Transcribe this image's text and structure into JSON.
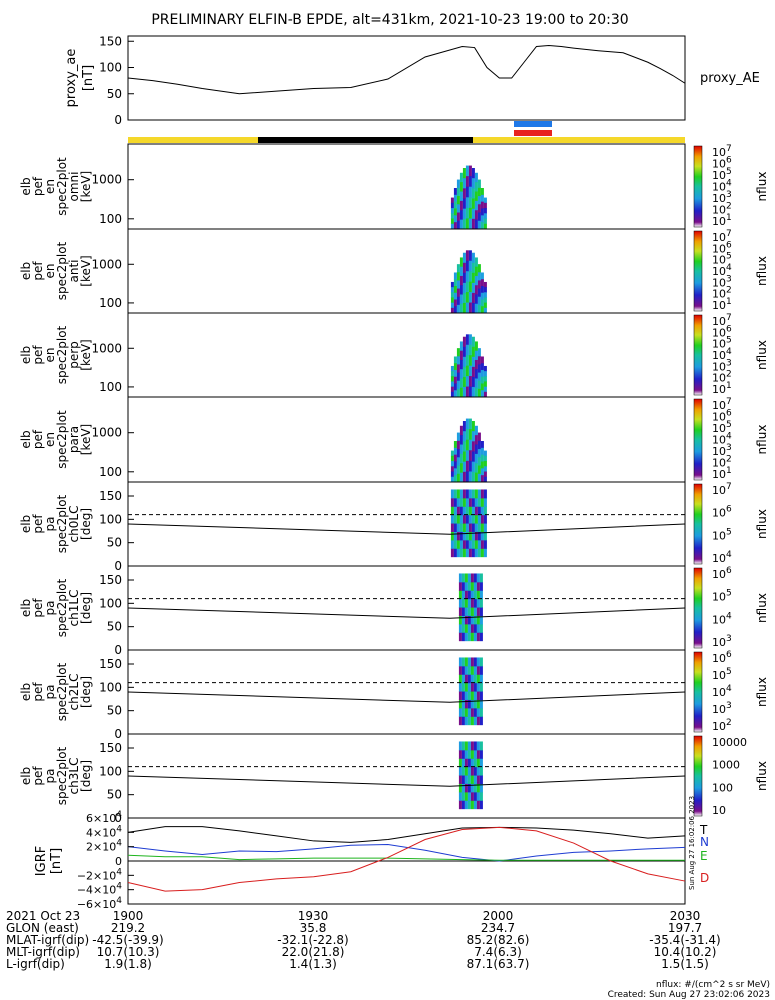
{
  "title": "PRELIMINARY ELFIN-B EPDE, alt=431km, 2021-10-23 19:00 to 20:30",
  "colors": {
    "yellow": "#f5d82a",
    "black": "#000000",
    "blue": "#1e78e8",
    "red": "#e8231e",
    "trace_red": "#d81e1e",
    "trace_green": "#1eb41e",
    "trace_blue": "#1e3cd2"
  },
  "chart_data": [
    {
      "type": "line",
      "panel": "proxy_ae",
      "ylabel": "proxy_ae [nT]",
      "legend": "proxy_AE",
      "yticks": [
        "150",
        "100",
        "50",
        "0"
      ],
      "ylim": [
        0,
        160
      ],
      "x_minutes": [
        0,
        4,
        8,
        12,
        18,
        24,
        30,
        36,
        42,
        48,
        54,
        56,
        58,
        60,
        62,
        64,
        66,
        68,
        70,
        72,
        76,
        80,
        84,
        86,
        88,
        90
      ],
      "values": [
        80,
        75,
        68,
        60,
        50,
        55,
        60,
        62,
        78,
        120,
        140,
        138,
        100,
        80,
        80,
        110,
        140,
        142,
        140,
        137,
        132,
        128,
        110,
        98,
        85,
        70
      ]
    },
    {
      "type": "heatmap",
      "panel": "elb pef en spec2plot omni [keV]",
      "ylabel": "elb pef en spec2plot omni [keV]",
      "yticks": [
        "1000",
        "100"
      ],
      "colorbar": {
        "label": "nflux",
        "ticks": [
          "10^7",
          "10^6",
          "10^5",
          "10^4",
          "10^3",
          "10^2",
          "10^1"
        ]
      }
    },
    {
      "type": "heatmap",
      "panel": "elb pef en spec2plot anti [keV]",
      "ylabel": "elb pef en spec2plot anti [keV]",
      "yticks": [
        "1000",
        "100"
      ],
      "colorbar": {
        "label": "nflux",
        "ticks": [
          "10^7",
          "10^6",
          "10^5",
          "10^4",
          "10^3",
          "10^2",
          "10^1"
        ]
      }
    },
    {
      "type": "heatmap",
      "panel": "elb pef en spec2plot perp [keV]",
      "ylabel": "elb pef en spec2plot perp [keV]",
      "yticks": [
        "1000",
        "100"
      ],
      "colorbar": {
        "label": "nflux",
        "ticks": [
          "10^7",
          "10^6",
          "10^5",
          "10^4",
          "10^3",
          "10^2",
          "10^1"
        ]
      }
    },
    {
      "type": "heatmap",
      "panel": "elb pef en spec2plot para [keV]",
      "ylabel": "elb pef en spec2plot para [keV]",
      "yticks": [
        "1000",
        "100"
      ],
      "colorbar": {
        "label": "nflux",
        "ticks": [
          "10^7",
          "10^6",
          "10^5",
          "10^4",
          "10^3",
          "10^2",
          "10^1"
        ]
      }
    },
    {
      "type": "heatmap",
      "panel": "elb pef pa spec2plot ch0LC [deg]",
      "ylabel": "elb pef pa spec2plot ch0LC [deg]",
      "yticks": [
        "150",
        "100",
        "50",
        "0"
      ],
      "ylim": [
        0,
        180
      ],
      "colorbar": {
        "label": "nflux",
        "ticks": [
          "10^7",
          "10^6",
          "10^5",
          "10^4"
        ]
      }
    },
    {
      "type": "heatmap",
      "panel": "elb pef pa spec2plot ch1LC [deg]",
      "ylabel": "elb pef pa spec2plot ch1LC [deg]",
      "yticks": [
        "150",
        "100",
        "50",
        "0"
      ],
      "ylim": [
        0,
        180
      ],
      "colorbar": {
        "label": "nflux",
        "ticks": [
          "10^6",
          "10^5",
          "10^4",
          "10^3"
        ]
      }
    },
    {
      "type": "heatmap",
      "panel": "elb pef pa spec2plot ch2LC [deg]",
      "ylabel": "elb pef pa spec2plot ch2LC [deg]",
      "yticks": [
        "150",
        "100",
        "50",
        "0"
      ],
      "ylim": [
        0,
        180
      ],
      "colorbar": {
        "label": "nflux",
        "ticks": [
          "10^6",
          "10^5",
          "10^4",
          "10^3",
          "10^2"
        ]
      }
    },
    {
      "type": "heatmap",
      "panel": "elb pef pa spec2plot ch3LC [deg]",
      "ylabel": "elb pef pa spec2plot ch3LC [deg]",
      "yticks": [
        "150",
        "100",
        "50",
        "0"
      ],
      "ylim": [
        0,
        180
      ],
      "colorbar": {
        "label": "nflux",
        "ticks": [
          "10000",
          "1000",
          "100",
          "10"
        ]
      }
    },
    {
      "type": "line",
      "panel": "IGRF [nT]",
      "ylabel": "IGRF [nT]",
      "yticks": [
        "6×10^4",
        "4×10^4",
        "2×10^4",
        "0",
        "−2×10^4",
        "−4×10^4",
        "−6×10^4"
      ],
      "ylim": [
        -60000,
        60000
      ],
      "legend": [
        "T",
        "N",
        "E",
        "D"
      ],
      "x_minutes": [
        0,
        6,
        12,
        18,
        24,
        30,
        36,
        42,
        48,
        54,
        60,
        66,
        72,
        78,
        84,
        90
      ],
      "series": [
        {
          "name": "T",
          "values": [
            40000,
            48000,
            48000,
            42000,
            35000,
            28000,
            26000,
            30000,
            38000,
            46000,
            47000,
            46000,
            43000,
            38000,
            32000,
            35000
          ]
        },
        {
          "name": "N",
          "values": [
            20000,
            14000,
            9000,
            14000,
            13000,
            17000,
            22000,
            23000,
            15000,
            5000,
            0,
            7000,
            12000,
            14000,
            17000,
            19000
          ]
        },
        {
          "name": "E",
          "values": [
            8000,
            6000,
            6000,
            2000,
            3000,
            4000,
            4000,
            4000,
            3000,
            2000,
            1000,
            1000,
            1000,
            1000,
            1000,
            1000
          ]
        },
        {
          "name": "D",
          "values": [
            -30000,
            -42000,
            -40000,
            -30000,
            -25000,
            -22000,
            -15000,
            5000,
            30000,
            44000,
            47000,
            42000,
            25000,
            0,
            -18000,
            -28000
          ]
        }
      ]
    }
  ],
  "footer": {
    "rows": [
      {
        "label": "2021 Oct 23",
        "vals": [
          "1900",
          "1930",
          "2000",
          "2030"
        ]
      },
      {
        "label": "GLON (east)",
        "vals": [
          "219.2",
          "35.8",
          "234.7",
          "197.7"
        ]
      },
      {
        "label": "MLAT-igrf(dip)",
        "vals": [
          "-42.5(-39.9)",
          "-32.1(-22.8)",
          "85.2(82.6)",
          "-35.4(-31.4)"
        ]
      },
      {
        "label": "MLT-igrf(dip)",
        "vals": "10.7(10.3)"
      },
      {
        "label": "L-igrf(dip)",
        "vals": [
          "1.9(1.8)",
          "1.4(1.3)",
          "87.1(63.7)",
          "1.5(1.5)"
        ]
      }
    ],
    "mlt_vals": [
      "10.7(10.3)",
      "22.0(21.8)",
      "7.4(6.3)",
      "10.4(10.2)"
    ],
    "units_note": "nflux: #/(cm^2 s sr MeV)",
    "created": "Created: Sun Aug 27 23:02:06 2023",
    "side_stamp": "Sun Aug 27 16:02:06 2023"
  }
}
